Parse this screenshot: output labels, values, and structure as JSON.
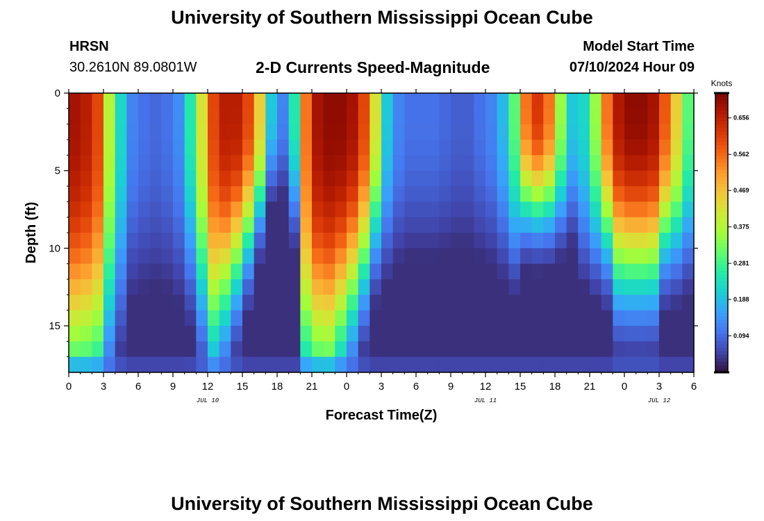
{
  "page": {
    "title_top": "University of Southern Mississippi Ocean Cube",
    "title_bottom": "University of Southern Mississippi Ocean Cube",
    "station": "HRSN",
    "coordinates": "30.2610N  89.0801W",
    "subtitle": "2-D Currents Speed-Magnitude",
    "model_start_label": "Model Start Time",
    "model_start_value": "07/10/2024 Hour 09"
  },
  "colors": {
    "colormap": [
      "#30123b",
      "#4145ab",
      "#4675ed",
      "#39a2fc",
      "#1bcfd4",
      "#24eca6",
      "#61fc6c",
      "#a4fc3b",
      "#d1e834",
      "#f3c63a",
      "#fe9b2d",
      "#f36315",
      "#d93806",
      "#b11901",
      "#7a0402"
    ]
  },
  "chart_data": {
    "type": "heatmap",
    "title": "2-D Currents Speed-Magnitude",
    "xlabel": "Forecast Time(Z)",
    "ylabel": "Depth (ft)",
    "x_ticks": [
      "0",
      "3",
      "6",
      "9",
      "12",
      "15",
      "18",
      "21",
      "0",
      "3",
      "6",
      "9",
      "12",
      "15",
      "18",
      "21",
      "0",
      "3",
      "6"
    ],
    "x_range_hours": [
      0,
      54
    ],
    "date_labels": [
      {
        "label": "JUL 10",
        "hour": 12
      },
      {
        "label": "JUL 11",
        "hour": 36
      },
      {
        "label": "JUL 12",
        "hour": 51
      }
    ],
    "y_ticks": [
      "0",
      "5",
      "10",
      "15"
    ],
    "y_range_ft": [
      0,
      18
    ],
    "colorbar_title": "Knots",
    "colorbar_ticks": [
      "0.094",
      "0.188",
      "0.281",
      "0.375",
      "0.469",
      "0.562",
      "0.656"
    ],
    "colorbar_range": [
      0.0,
      0.72
    ],
    "hour_bins": 54,
    "depth_bins": 18,
    "speed_field": {
      "description": "approximate speed (knots) by forecast hour and depth",
      "surface_hours": [
        0,
        1,
        2,
        3,
        4,
        5,
        6,
        7,
        8,
        9,
        10,
        11,
        12,
        13,
        14,
        15,
        16,
        17,
        18,
        19,
        20,
        21,
        22,
        23,
        24,
        25,
        26,
        27,
        28,
        29,
        30,
        31,
        32,
        33,
        34,
        35,
        36,
        37,
        38,
        39,
        40,
        41,
        42,
        43,
        44,
        45,
        46,
        47,
        48,
        49,
        50,
        51,
        52,
        53
      ],
      "surface_speed": [
        0.68,
        0.66,
        0.6,
        0.38,
        0.22,
        0.12,
        0.1,
        0.09,
        0.1,
        0.13,
        0.25,
        0.42,
        0.6,
        0.66,
        0.66,
        0.6,
        0.45,
        0.2,
        0.12,
        0.25,
        0.55,
        0.68,
        0.7,
        0.7,
        0.68,
        0.6,
        0.42,
        0.2,
        0.12,
        0.1,
        0.1,
        0.1,
        0.09,
        0.08,
        0.08,
        0.1,
        0.12,
        0.18,
        0.3,
        0.55,
        0.62,
        0.55,
        0.35,
        0.2,
        0.22,
        0.35,
        0.55,
        0.67,
        0.7,
        0.7,
        0.68,
        0.58,
        0.45,
        0.3
      ],
      "decay_half_depth_ft": [
        18,
        18,
        18,
        16,
        14,
        12,
        12,
        12,
        12,
        12,
        12,
        14,
        16,
        14,
        12,
        10,
        8,
        6,
        6,
        8,
        18,
        18,
        18,
        16,
        14,
        12,
        10,
        10,
        10,
        10,
        10,
        10,
        10,
        10,
        10,
        10,
        10,
        10,
        10,
        8,
        8,
        8,
        8,
        8,
        10,
        10,
        10,
        12,
        12,
        12,
        12,
        10,
        10,
        10
      ]
    }
  }
}
